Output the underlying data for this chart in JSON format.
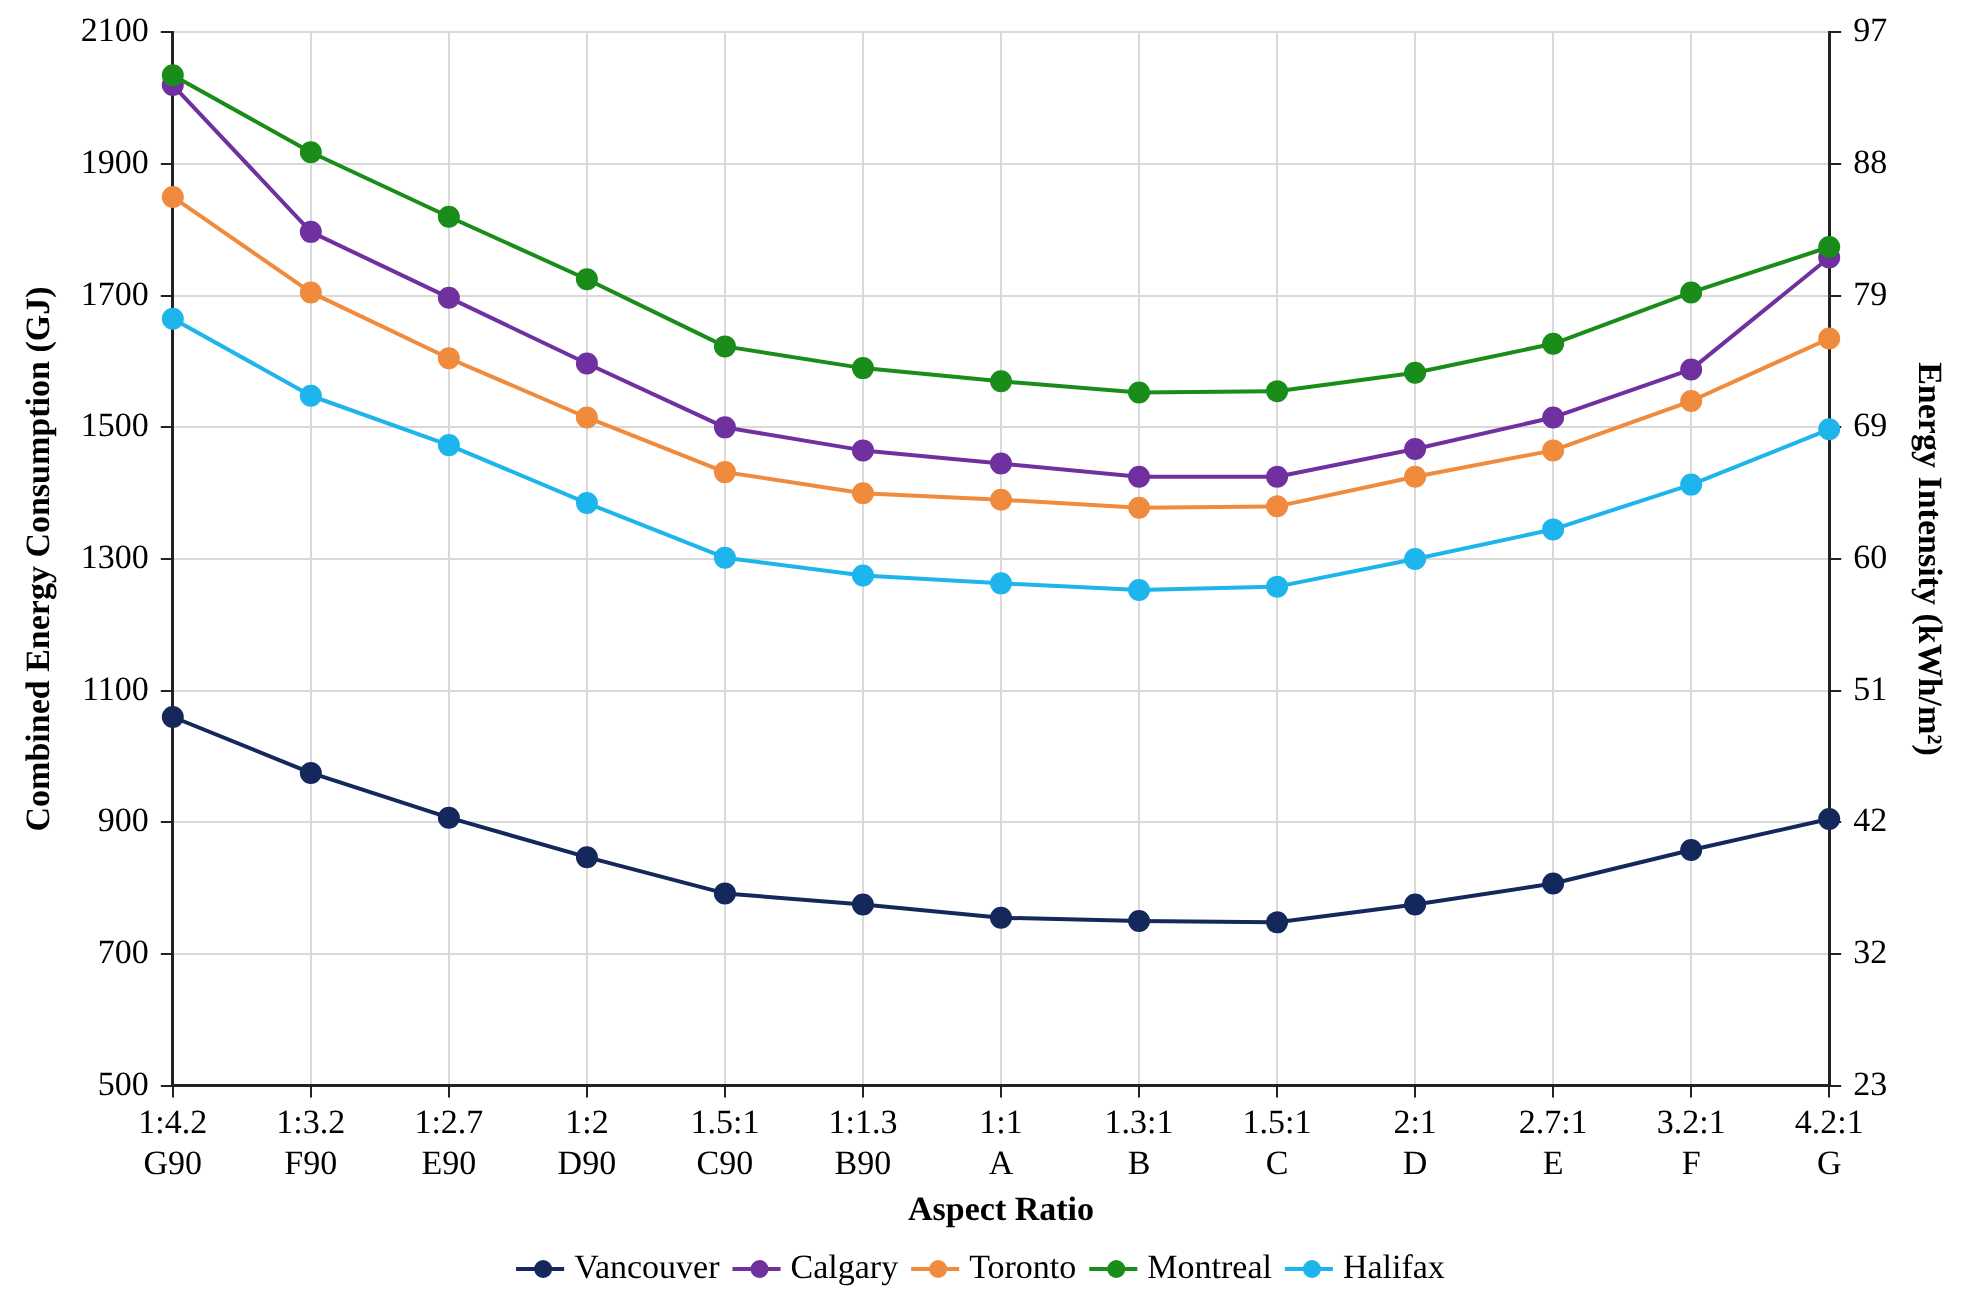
{
  "chart_data": {
    "type": "line",
    "xlabel": "Aspect Ratio",
    "ylabel": "Combined Energy Consumption (GJ)",
    "y2label": "Energy Intensity (kWh/m²)",
    "categories": [
      "1:4.2\nG90",
      "1:3.2\nF90",
      "1:2.7\nE90",
      "1:2\nD90",
      "1.5:1\nC90",
      "1:1.3\nB90",
      "1:1\nA",
      "1.3:1\nB",
      "1.5:1\nC",
      "2:1\nD",
      "2.7:1\nE",
      "3.2:1\nF",
      "4.2:1\nG"
    ],
    "series": [
      {
        "name": "Vancouver",
        "color": "#14285c",
        "values": [
          1060,
          975,
          907,
          847,
          792,
          775,
          755,
          750,
          748,
          775,
          807,
          858,
          905
        ]
      },
      {
        "name": "Calgary",
        "color": "#7030a0",
        "values": [
          2020,
          1797,
          1697,
          1597,
          1500,
          1465,
          1445,
          1425,
          1425,
          1467,
          1515,
          1588,
          1758
        ]
      },
      {
        "name": "Toronto",
        "color": "#f08a3c",
        "values": [
          1850,
          1705,
          1605,
          1515,
          1432,
          1400,
          1390,
          1378,
          1380,
          1425,
          1465,
          1540,
          1635
        ]
      },
      {
        "name": "Montreal",
        "color": "#1a8c1a",
        "values": [
          2035,
          1918,
          1820,
          1725,
          1623,
          1590,
          1570,
          1553,
          1555,
          1583,
          1627,
          1705,
          1774
        ]
      },
      {
        "name": "Halifax",
        "color": "#1eb4ec",
        "values": [
          1665,
          1548,
          1473,
          1385,
          1302,
          1275,
          1263,
          1253,
          1258,
          1300,
          1345,
          1413,
          1497
        ]
      }
    ],
    "ylim": [
      500,
      2100
    ],
    "yticks": [
      500,
      700,
      900,
      1100,
      1300,
      1500,
      1700,
      1900,
      2100
    ],
    "y2lim": [
      23,
      97
    ],
    "y2ticks": [
      23,
      {
        "value": 32.25,
        "label": "32"
      },
      {
        "value": 41.5,
        "label": "42"
      },
      {
        "value": 50.75,
        "label": "51"
      },
      60,
      {
        "value": 69.25,
        "label": "69"
      },
      {
        "value": 78.5,
        "label": "79"
      },
      {
        "value": 87.75,
        "label": "88"
      },
      97
    ],
    "grid": true,
    "legend": "bottom",
    "marker": "circle",
    "line_style": "solid"
  }
}
